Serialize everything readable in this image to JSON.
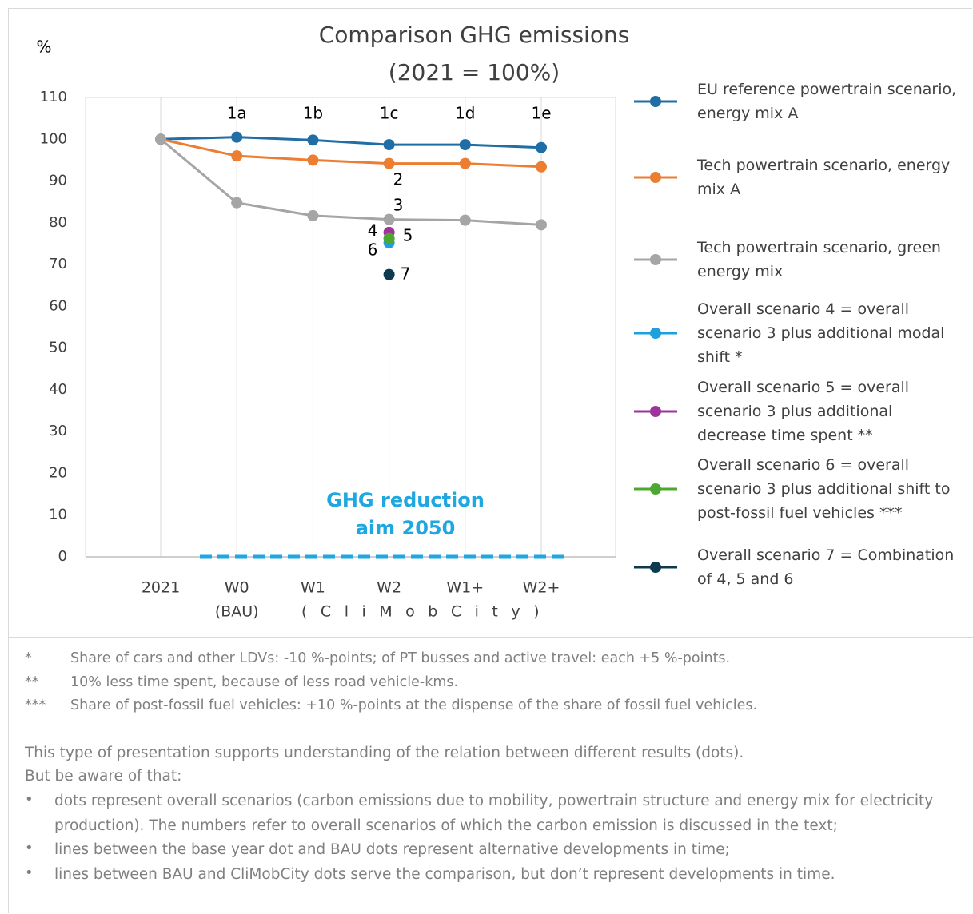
{
  "chart_data": {
    "type": "line",
    "title": "Comparison GHG emissions",
    "subtitle": "(2021 = 100%)",
    "y_label": "%",
    "categories": [
      "2021",
      "W0",
      "W1",
      "W2",
      "W1+",
      "W2+"
    ],
    "category_sublabels": [
      null,
      "(BAU)",
      null,
      null,
      null,
      null
    ],
    "group_label": "(CliMobCity)",
    "point_labels": [
      null,
      "1a",
      "1b",
      "1c",
      "1d",
      "1e"
    ],
    "ylim": [
      0,
      110
    ],
    "yticks": [
      0,
      10,
      20,
      30,
      40,
      50,
      60,
      70,
      80,
      90,
      100,
      110
    ],
    "grid": false,
    "legend": "right",
    "series": [
      {
        "name": "EU reference powertrain scenario, energy mix A",
        "color": "#1f6ea6",
        "values": [
          100,
          100.5,
          99.8,
          98.7,
          98.7,
          98.0
        ]
      },
      {
        "name": "Tech powertrain scenario, energy mix A",
        "color": "#ed7d31",
        "values": [
          100,
          96.0,
          95.0,
          94.2,
          94.2,
          93.4
        ]
      },
      {
        "name": "Tech powertrain scenario, green energy mix",
        "color": "#a5a5a5",
        "values": [
          100,
          84.8,
          81.7,
          80.8,
          80.6,
          79.5
        ]
      },
      {
        "name": "Overall scenario 4 = overall scenario 3  plus additional modal shift *",
        "color": "#1ea0dc",
        "values": [
          null,
          null,
          null,
          75.2,
          null,
          null
        ]
      },
      {
        "name": "Overall scenario 5 = overall scenario 3 plus additional decrease time spent **",
        "color": "#a0339a",
        "values": [
          null,
          null,
          null,
          77.7,
          null,
          null
        ]
      },
      {
        "name": "Overall scenario 6 = overall scenario 3 plus additional shift to post-fossil fuel vehicles ***",
        "color": "#4ea72e",
        "values": [
          null,
          null,
          null,
          76.2,
          null,
          null
        ]
      },
      {
        "name": "Overall scenario 7 = Combination of 4, 5 and 6",
        "color": "#0e3a4f",
        "values": [
          null,
          null,
          null,
          67.6,
          null,
          null
        ]
      }
    ],
    "annotations": [
      "2",
      "3",
      "4",
      "5",
      "6",
      "7"
    ],
    "target": {
      "value": 0,
      "color": "#1ea7e0",
      "label": [
        "GHG reduction",
        "aim 2050"
      ]
    }
  },
  "footnotes": [
    {
      "marker": "*",
      "text": "Share of cars and other LDVs: -10 %-points; of PT busses and active travel: each +5 %-points."
    },
    {
      "marker": "**",
      "text": "10% less time spent, because of less road vehicle-kms."
    },
    {
      "marker": "***",
      "text": "Share of post-fossil fuel vehicles: +10 %-points at the dispense of the share of fossil fuel vehicles."
    }
  ],
  "notes": {
    "intro": [
      "This type of presentation supports understanding of the relation between different results (dots).",
      "But be aware of that:"
    ],
    "bullets": [
      "dots represent overall scenarios (carbon emissions due to mobility, powertrain structure and energy mix for electricity production). The numbers refer to overall scenarios of which the carbon emission is discussed in the text;",
      "lines between the base year dot and BAU dots represent alternative developments in time;",
      "lines between BAU and CliMobCity dots serve the comparison, but don’t represent developments in time."
    ]
  }
}
